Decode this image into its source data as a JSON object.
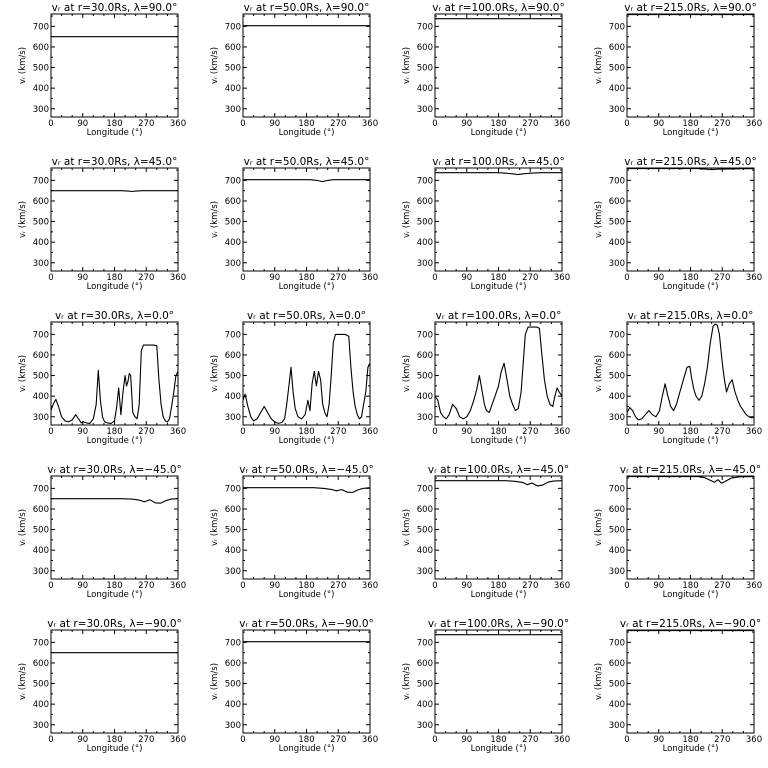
{
  "chart_data": [
    {
      "type": "line",
      "title": "vᵣ at r=30.0Rs, λ=90.0°",
      "xlabel": "Longitude (°)",
      "ylabel": "vᵣ (km/s)",
      "xlim": [
        0,
        360
      ],
      "ylim": [
        260,
        760
      ],
      "xticks": [
        "0",
        "90",
        "180",
        "270",
        "360"
      ],
      "yticks": [
        "300",
        "400",
        "500",
        "600",
        "700"
      ],
      "x": [
        0,
        360
      ],
      "y": [
        650,
        650
      ]
    },
    {
      "type": "line",
      "title": "vᵣ at r=50.0Rs, λ=90.0°",
      "xlabel": "Longitude (°)",
      "ylabel": "vᵣ (km/s)",
      "xlim": [
        0,
        360
      ],
      "ylim": [
        260,
        760
      ],
      "xticks": [
        "0",
        "90",
        "180",
        "270",
        "360"
      ],
      "yticks": [
        "300",
        "400",
        "500",
        "600",
        "700"
      ],
      "x": [
        0,
        360
      ],
      "y": [
        703,
        703
      ]
    },
    {
      "type": "line",
      "title": "vᵣ at r=100.0Rs, λ=90.0°",
      "xlabel": "Longitude (°)",
      "ylabel": "vᵣ (km/s)",
      "xlim": [
        0,
        360
      ],
      "ylim": [
        260,
        760
      ],
      "xticks": [
        "0",
        "90",
        "180",
        "270",
        "360"
      ],
      "yticks": [
        "300",
        "400",
        "500",
        "600",
        "700"
      ],
      "x": [
        0,
        360
      ],
      "y": [
        737,
        737
      ]
    },
    {
      "type": "line",
      "title": "vᵣ at r=215.0Rs, λ=90.0°",
      "xlabel": "Longitude (°)",
      "ylabel": "vᵣ (km/s)",
      "xlim": [
        0,
        360
      ],
      "ylim": [
        260,
        760
      ],
      "xticks": [
        "0",
        "90",
        "180",
        "270",
        "360"
      ],
      "yticks": [
        "300",
        "400",
        "500",
        "600",
        "700"
      ],
      "x": [
        0,
        360
      ],
      "y": [
        757,
        757
      ]
    },
    {
      "type": "line",
      "title": "vᵣ at r=30.0Rs, λ=45.0°",
      "xlabel": "Longitude (°)",
      "ylabel": "vᵣ (km/s)",
      "xlim": [
        0,
        360
      ],
      "ylim": [
        260,
        760
      ],
      "xticks": [
        "0",
        "90",
        "180",
        "270",
        "360"
      ],
      "yticks": [
        "300",
        "400",
        "500",
        "600",
        "700"
      ],
      "x": [
        0,
        200,
        220,
        230,
        240,
        260,
        360
      ],
      "y": [
        650,
        650,
        648,
        646,
        648,
        650,
        650
      ]
    },
    {
      "type": "line",
      "title": "vᵣ at r=50.0Rs, λ=45.0°",
      "xlabel": "Longitude (°)",
      "ylabel": "vᵣ (km/s)",
      "xlim": [
        0,
        360
      ],
      "ylim": [
        260,
        760
      ],
      "xticks": [
        "0",
        "90",
        "180",
        "270",
        "360"
      ],
      "yticks": [
        "300",
        "400",
        "500",
        "600",
        "700"
      ],
      "x": [
        0,
        190,
        210,
        225,
        240,
        255,
        360
      ],
      "y": [
        703,
        703,
        700,
        694,
        700,
        703,
        703
      ]
    },
    {
      "type": "line",
      "title": "vᵣ at r=100.0Rs, λ=45.0°",
      "xlabel": "Longitude (°)",
      "ylabel": "vᵣ (km/s)",
      "xlim": [
        0,
        360
      ],
      "ylim": [
        260,
        760
      ],
      "xticks": [
        "0",
        "90",
        "180",
        "270",
        "360"
      ],
      "yticks": [
        "300",
        "400",
        "500",
        "600",
        "700"
      ],
      "x": [
        0,
        180,
        200,
        220,
        235,
        250,
        270,
        300,
        360
      ],
      "y": [
        737,
        737,
        735,
        732,
        728,
        732,
        735,
        737,
        737
      ]
    },
    {
      "type": "line",
      "title": "vᵣ at r=215.0Rs, λ=45.0°",
      "xlabel": "Longitude (°)",
      "ylabel": "vᵣ (km/s)",
      "xlim": [
        0,
        360
      ],
      "ylim": [
        260,
        760
      ],
      "xticks": [
        "0",
        "90",
        "180",
        "270",
        "360"
      ],
      "yticks": [
        "300",
        "400",
        "500",
        "600",
        "700"
      ],
      "x": [
        0,
        200,
        225,
        240,
        255,
        360
      ],
      "y": [
        757,
        757,
        754,
        752,
        754,
        757
      ]
    },
    {
      "type": "line",
      "title": "vᵣ at r=30.0Rs, λ=0.0°",
      "xlabel": "Longitude (°)",
      "ylabel": "vᵣ (km/s)",
      "xlim": [
        0,
        360
      ],
      "ylim": [
        260,
        760
      ],
      "xticks": [
        "0",
        "90",
        "180",
        "270",
        "360"
      ],
      "yticks": [
        "300",
        "400",
        "500",
        "600",
        "700"
      ],
      "x": [
        0,
        6,
        14,
        22,
        30,
        40,
        50,
        60,
        70,
        78,
        86,
        92,
        100,
        110,
        120,
        128,
        134,
        140,
        146,
        152,
        160,
        170,
        180,
        186,
        192,
        198,
        204,
        210,
        214,
        218,
        222,
        226,
        232,
        238,
        244,
        250,
        256,
        262,
        270,
        280,
        290,
        300,
        306,
        312,
        318,
        324,
        330,
        336,
        342,
        348,
        354,
        360
      ],
      "y": [
        330,
        360,
        385,
        345,
        300,
        280,
        275,
        285,
        310,
        290,
        270,
        275,
        270,
        268,
        290,
        360,
        525,
        380,
        300,
        275,
        270,
        268,
        280,
        345,
        440,
        310,
        420,
        500,
        450,
        470,
        510,
        500,
        320,
        300,
        290,
        360,
        620,
        648,
        648,
        648,
        648,
        645,
        480,
        360,
        300,
        280,
        275,
        290,
        350,
        420,
        500,
        520
      ]
    },
    {
      "type": "line",
      "title": "vᵣ at r=50.0Rs, λ=0.0°",
      "xlabel": "Longitude (°)",
      "ylabel": "vᵣ (km/s)",
      "xlim": [
        0,
        360
      ],
      "ylim": [
        260,
        760
      ],
      "xticks": [
        "0",
        "90",
        "180",
        "270",
        "360"
      ],
      "yticks": [
        "300",
        "400",
        "500",
        "600",
        "700"
      ],
      "x": [
        0,
        6,
        14,
        22,
        30,
        40,
        50,
        60,
        70,
        80,
        90,
        100,
        110,
        118,
        124,
        130,
        136,
        142,
        148,
        156,
        166,
        176,
        184,
        190,
        196,
        202,
        208,
        214,
        220,
        226,
        232,
        238,
        244,
        250,
        256,
        262,
        270,
        280,
        290,
        300,
        306,
        312,
        318,
        324,
        330,
        336,
        342,
        348,
        354,
        360
      ],
      "y": [
        380,
        410,
        350,
        300,
        280,
        290,
        320,
        350,
        320,
        290,
        275,
        268,
        272,
        290,
        360,
        450,
        540,
        420,
        340,
        300,
        290,
        310,
        380,
        330,
        460,
        520,
        450,
        520,
        480,
        360,
        320,
        300,
        360,
        500,
        660,
        700,
        700,
        700,
        700,
        690,
        540,
        420,
        350,
        310,
        290,
        300,
        360,
        420,
        540,
        560
      ]
    },
    {
      "type": "line",
      "title": "vᵣ at r=100.0Rs, λ=0.0°",
      "xlabel": "Longitude (°)",
      "ylabel": "vᵣ (km/s)",
      "xlim": [
        0,
        360
      ],
      "ylim": [
        260,
        760
      ],
      "xticks": [
        "0",
        "90",
        "180",
        "270",
        "360"
      ],
      "yticks": [
        "300",
        "400",
        "500",
        "600",
        "700"
      ],
      "x": [
        0,
        8,
        16,
        24,
        32,
        40,
        50,
        60,
        70,
        80,
        90,
        100,
        110,
        118,
        126,
        134,
        140,
        146,
        154,
        162,
        170,
        180,
        188,
        196,
        204,
        212,
        220,
        228,
        236,
        244,
        250,
        256,
        264,
        272,
        280,
        288,
        296,
        302,
        310,
        318,
        326,
        334,
        340,
        346,
        352,
        360
      ],
      "y": [
        400,
        380,
        320,
        300,
        290,
        310,
        360,
        340,
        300,
        290,
        300,
        330,
        380,
        430,
        500,
        420,
        360,
        330,
        320,
        360,
        400,
        450,
        520,
        560,
        480,
        400,
        360,
        330,
        340,
        420,
        560,
        700,
        735,
        735,
        735,
        735,
        730,
        620,
        480,
        400,
        360,
        350,
        400,
        440,
        420,
        400
      ]
    },
    {
      "type": "line",
      "title": "vᵣ at r=215.0Rs, λ=0.0°",
      "xlabel": "Longitude (°)",
      "ylabel": "vᵣ (km/s)",
      "xlim": [
        0,
        360
      ],
      "ylim": [
        260,
        760
      ],
      "xticks": [
        "0",
        "90",
        "180",
        "270",
        "360"
      ],
      "yticks": [
        "300",
        "400",
        "500",
        "600",
        "700"
      ],
      "x": [
        0,
        8,
        16,
        24,
        32,
        42,
        52,
        62,
        72,
        82,
        92,
        100,
        108,
        116,
        124,
        132,
        140,
        150,
        160,
        170,
        178,
        184,
        190,
        196,
        204,
        212,
        220,
        228,
        236,
        244,
        250,
        256,
        262,
        270,
        276,
        282,
        290,
        298,
        306,
        314,
        322,
        330,
        338,
        346,
        354,
        360
      ],
      "y": [
        320,
        345,
        330,
        300,
        285,
        290,
        310,
        330,
        310,
        300,
        330,
        400,
        460,
        400,
        350,
        330,
        360,
        420,
        480,
        540,
        545,
        480,
        430,
        400,
        380,
        400,
        460,
        540,
        660,
        740,
        750,
        745,
        700,
        560,
        480,
        420,
        460,
        480,
        420,
        380,
        350,
        330,
        310,
        300,
        295,
        300
      ]
    },
    {
      "type": "line",
      "title": "vᵣ at r=30.0Rs, λ=−45.0°",
      "xlabel": "Longitude (°)",
      "ylabel": "vᵣ (km/s)",
      "xlim": [
        0,
        360
      ],
      "ylim": [
        260,
        760
      ],
      "xticks": [
        "0",
        "90",
        "180",
        "270",
        "360"
      ],
      "yticks": [
        "300",
        "400",
        "500",
        "600",
        "700"
      ],
      "x": [
        0,
        200,
        230,
        250,
        265,
        280,
        295,
        310,
        325,
        340,
        360
      ],
      "y": [
        650,
        650,
        648,
        643,
        635,
        645,
        630,
        628,
        640,
        648,
        650
      ]
    },
    {
      "type": "line",
      "title": "vᵣ at r=50.0Rs, λ=−45.0°",
      "xlabel": "Longitude (°)",
      "ylabel": "vᵣ (km/s)",
      "xlim": [
        0,
        360
      ],
      "ylim": [
        260,
        760
      ],
      "xticks": [
        "0",
        "90",
        "180",
        "270",
        "360"
      ],
      "yticks": [
        "300",
        "400",
        "500",
        "600",
        "700"
      ],
      "x": [
        0,
        200,
        230,
        250,
        265,
        280,
        295,
        310,
        325,
        340,
        360
      ],
      "y": [
        703,
        703,
        700,
        695,
        688,
        694,
        682,
        680,
        692,
        700,
        703
      ]
    },
    {
      "type": "line",
      "title": "vᵣ at r=100.0Rs, λ=−45.0°",
      "xlabel": "Longitude (°)",
      "ylabel": "vᵣ (km/s)",
      "xlim": [
        0,
        360
      ],
      "ylim": [
        260,
        760
      ],
      "xticks": [
        "0",
        "90",
        "180",
        "270",
        "360"
      ],
      "yticks": [
        "300",
        "400",
        "500",
        "600",
        "700"
      ],
      "x": [
        0,
        200,
        230,
        250,
        262,
        275,
        290,
        305,
        320,
        335,
        360
      ],
      "y": [
        737,
        737,
        734,
        728,
        718,
        726,
        712,
        716,
        730,
        735,
        737
      ]
    },
    {
      "type": "line",
      "title": "vᵣ at r=215.0Rs, λ=−45.0°",
      "xlabel": "Longitude (°)",
      "ylabel": "vᵣ (km/s)",
      "xlim": [
        0,
        360
      ],
      "ylim": [
        260,
        760
      ],
      "xticks": [
        "0",
        "90",
        "180",
        "270",
        "360"
      ],
      "yticks": [
        "300",
        "400",
        "500",
        "600",
        "700"
      ],
      "x": [
        0,
        200,
        220,
        235,
        248,
        258,
        268,
        280,
        295,
        320,
        360
      ],
      "y": [
        757,
        757,
        752,
        740,
        730,
        742,
        725,
        735,
        750,
        756,
        757
      ]
    },
    {
      "type": "line",
      "title": "vᵣ at r=30.0Rs, λ=−90.0°",
      "xlabel": "Longitude (°)",
      "ylabel": "vᵣ (km/s)",
      "xlim": [
        0,
        360
      ],
      "ylim": [
        260,
        760
      ],
      "xticks": [
        "0",
        "90",
        "180",
        "270",
        "360"
      ],
      "yticks": [
        "300",
        "400",
        "500",
        "600",
        "700"
      ],
      "x": [
        0,
        360
      ],
      "y": [
        650,
        650
      ]
    },
    {
      "type": "line",
      "title": "vᵣ at r=50.0Rs, λ=−90.0°",
      "xlabel": "Longitude (°)",
      "ylabel": "vᵣ (km/s)",
      "xlim": [
        0,
        360
      ],
      "ylim": [
        260,
        760
      ],
      "xticks": [
        "0",
        "90",
        "180",
        "270",
        "360"
      ],
      "yticks": [
        "300",
        "400",
        "500",
        "600",
        "700"
      ],
      "x": [
        0,
        360
      ],
      "y": [
        703,
        703
      ]
    },
    {
      "type": "line",
      "title": "vᵣ at r=100.0Rs, λ=−90.0°",
      "xlabel": "Longitude (°)",
      "ylabel": "vᵣ (km/s)",
      "xlim": [
        0,
        360
      ],
      "ylim": [
        260,
        760
      ],
      "xticks": [
        "0",
        "90",
        "180",
        "270",
        "360"
      ],
      "yticks": [
        "300",
        "400",
        "500",
        "600",
        "700"
      ],
      "x": [
        0,
        360
      ],
      "y": [
        737,
        737
      ]
    },
    {
      "type": "line",
      "title": "vᵣ at r=215.0Rs, λ=−90.0°",
      "xlabel": "Longitude (°)",
      "ylabel": "vᵣ (km/s)",
      "xlim": [
        0,
        360
      ],
      "ylim": [
        260,
        760
      ],
      "xticks": [
        "0",
        "90",
        "180",
        "270",
        "360"
      ],
      "yticks": [
        "300",
        "400",
        "500",
        "600",
        "700"
      ],
      "x": [
        0,
        360
      ],
      "y": [
        757,
        757
      ]
    }
  ]
}
